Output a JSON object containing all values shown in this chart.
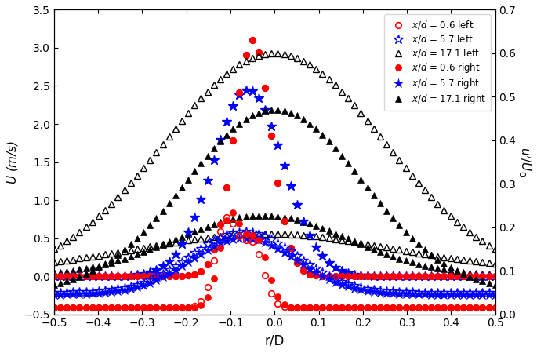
{
  "xlabel": "r/D",
  "ylabel_left": "U (m/s)",
  "ylabel_right": "u'/U_0",
  "xlim": [
    -0.5,
    0.5
  ],
  "ylim_left": [
    -0.5,
    3.5
  ],
  "ylim_right": [
    0,
    0.7
  ],
  "yticks_left": [
    -0.5,
    0.0,
    0.5,
    1.0,
    1.5,
    2.0,
    2.5,
    3.0,
    3.5
  ],
  "yticks_right": [
    0.0,
    0.1,
    0.2,
    0.3,
    0.4,
    0.5,
    0.6,
    0.7
  ],
  "xticks": [
    -0.5,
    -0.4,
    -0.3,
    -0.2,
    -0.1,
    0.0,
    0.1,
    0.2,
    0.3,
    0.4,
    0.5
  ]
}
